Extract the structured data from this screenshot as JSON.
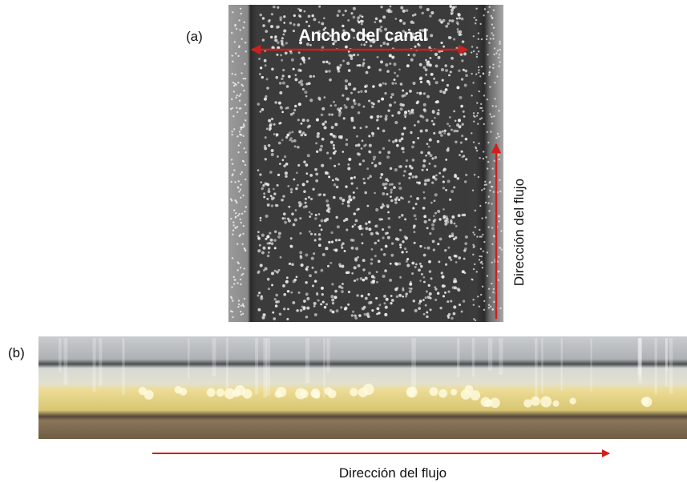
{
  "panels": [
    {
      "label": "(a)",
      "annotations": [
        "Ancho del canal",
        "Dirección del flujo"
      ]
    },
    {
      "label": "(b)",
      "annotations": [
        "Dirección del flujo"
      ]
    }
  ]
}
